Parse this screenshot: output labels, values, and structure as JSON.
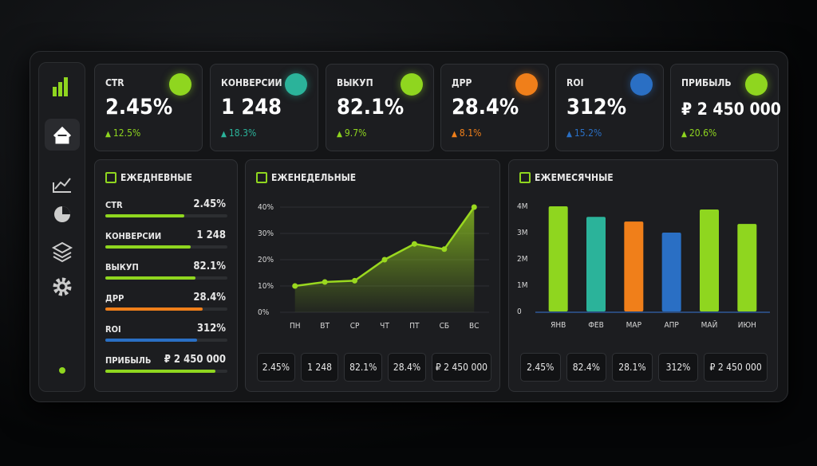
{
  "kpis": [
    {
      "label": "CTR",
      "value": "2.45%",
      "change": "12.5%",
      "color": "#8fd61f"
    },
    {
      "label": "КОНВЕРСИИ",
      "value": "1 248",
      "change": "18.3%",
      "color": "#2bb39a"
    },
    {
      "label": "ВЫКУП",
      "value": "82.1%",
      "change": "9.7%",
      "color": "#8fd61f"
    },
    {
      "label": "ДРР",
      "value": "28.4%",
      "change": "8.1%",
      "color": "#f07f1a"
    },
    {
      "label": "ROI",
      "value": "312%",
      "change": "15.2%",
      "color": "#2a6fc4"
    },
    {
      "label": "ПРИБЫЛЬ",
      "value": "₽ 2 450 000",
      "change": "20.6%",
      "color": "#8fd61f"
    }
  ],
  "daily": {
    "title": "ЕЖЕДНЕВНЫЕ",
    "rows": [
      {
        "label": "CTR",
        "value": "2.45%",
        "progress": 65,
        "color": "#8fd61f"
      },
      {
        "label": "КОНВЕРСИИ",
        "value": "1 248",
        "progress": 70,
        "color": "#8fd61f"
      },
      {
        "label": "ВЫКУП",
        "value": "82.1%",
        "progress": 74,
        "color": "#8fd61f"
      },
      {
        "label": "ДРР",
        "value": "28.4%",
        "progress": 80,
        "color": "#f07f1a"
      },
      {
        "label": "ROI",
        "value": "312%",
        "progress": 75,
        "color": "#2a6fc4"
      },
      {
        "label": "ПРИБЫЛЬ",
        "value": "₽ 2 450 000",
        "progress": 90,
        "color": "#8fd61f"
      }
    ]
  },
  "weekly": {
    "title": "ЕЖЕНЕДЕЛЬНЫЕ",
    "chart": {
      "type": "line",
      "categories": [
        "ПН",
        "ВТ",
        "СР",
        "ЧТ",
        "ПТ",
        "СБ",
        "ВС"
      ],
      "values": [
        10,
        11.5,
        12,
        20,
        26,
        24,
        40
      ],
      "color": "#9ad81f",
      "ylim": [
        0,
        40
      ],
      "yticks": [
        {
          "value": 0,
          "label": "0%"
        },
        {
          "value": 10,
          "label": "10%"
        },
        {
          "value": 20,
          "label": "20%"
        },
        {
          "value": 30,
          "label": "30%"
        },
        {
          "value": 40,
          "label": "40%"
        }
      ],
      "grid": true
    },
    "chips": [
      "2.45%",
      "1 248",
      "82.1%",
      "28.4%",
      "₽ 2 450 000"
    ]
  },
  "monthly": {
    "title": "ЕЖЕМЕСЯЧНЫЕ",
    "chart": {
      "type": "bar",
      "categories": [
        "ЯНВ",
        "ФЕВ",
        "МАР",
        "АПР",
        "МАЙ",
        "ИЮН"
      ],
      "values": [
        4.0,
        3.6,
        3.42,
        3.0,
        3.88,
        3.33
      ],
      "colors": [
        "#8fd61f",
        "#2bb39a",
        "#f07f1a",
        "#2a6fc4",
        "#8fd61f",
        "#8fd61f"
      ],
      "ylim": [
        0,
        4
      ],
      "yticks": [
        0,
        {
          "value": 1,
          "label": "1M"
        },
        {
          "value": 2,
          "label": "2M"
        },
        {
          "value": 3,
          "label": "3M"
        },
        {
          "value": 4,
          "label": "4M"
        }
      ],
      "grid": false
    },
    "chips": [
      "2.45%",
      "82.4%",
      "28.1%",
      "312%",
      "₽ 2 450 000"
    ]
  }
}
